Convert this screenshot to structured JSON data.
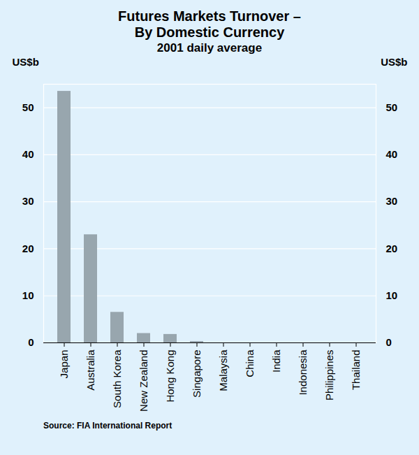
{
  "chart_data": {
    "type": "bar",
    "title": "Futures Markets Turnover –\nBy Domestic Currency",
    "subtitle": "2001 daily average",
    "y_label": "US$b",
    "y2_label": "US$b",
    "source": "Source: FIA International Report",
    "categories": [
      "Japan",
      "Australia",
      "South Korea",
      "New Zealand",
      "Hong Kong",
      "Singapore",
      "Malaysia",
      "China",
      "India",
      "Indonesia",
      "Philippines",
      "Thailand"
    ],
    "values": [
      53.5,
      23,
      6.5,
      2,
      1.8,
      0.3,
      0,
      0,
      0,
      0,
      0,
      0
    ],
    "color": "#98a6ae",
    "ylim": [
      0,
      55
    ],
    "yticks": [
      0,
      10,
      20,
      30,
      40,
      50
    ],
    "grid": true
  }
}
